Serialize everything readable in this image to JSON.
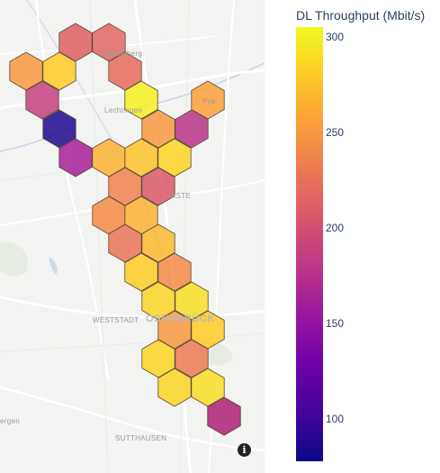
{
  "colorbar": {
    "title": "DL Throughput (Mbit/s)",
    "min": 78,
    "max": 305,
    "ticks": [
      {
        "value": 300,
        "label": "300"
      },
      {
        "value": 250,
        "label": "250"
      },
      {
        "value": 200,
        "label": "200"
      },
      {
        "value": 150,
        "label": "150"
      },
      {
        "value": 100,
        "label": "100"
      }
    ]
  },
  "places": [
    {
      "label": "Westerberg"
    },
    {
      "label": "Lechtingen"
    },
    {
      "label": "Pye"
    },
    {
      "label": "ASTE"
    },
    {
      "label": "WESTSTADT"
    },
    {
      "label": "OSNABRÜCK"
    },
    {
      "label": "SUTTHAUSEN"
    },
    {
      "label": "ergen"
    }
  ],
  "icons": {
    "info": "info-icon",
    "info_glyph": "i"
  },
  "hexbins": [
    {
      "value": 210
    },
    {
      "value": 215
    },
    {
      "value": 250
    },
    {
      "value": 280
    },
    {
      "value": 220
    },
    {
      "value": 185
    },
    {
      "value": 300
    },
    {
      "value": 255
    },
    {
      "value": 85
    },
    {
      "value": 250
    },
    {
      "value": 175
    },
    {
      "value": 160
    },
    {
      "value": 265
    },
    {
      "value": 275
    },
    {
      "value": 285
    },
    {
      "value": 235
    },
    {
      "value": 205
    },
    {
      "value": 240
    },
    {
      "value": 265
    },
    {
      "value": 225
    },
    {
      "value": 270
    },
    {
      "value": 280
    },
    {
      "value": 240
    },
    {
      "value": 285
    },
    {
      "value": 290
    },
    {
      "value": 250
    },
    {
      "value": 280
    },
    {
      "value": 285
    },
    {
      "value": 230
    },
    {
      "value": 285
    },
    {
      "value": 290
    },
    {
      "value": 280
    },
    {
      "value": 165
    }
  ]
}
